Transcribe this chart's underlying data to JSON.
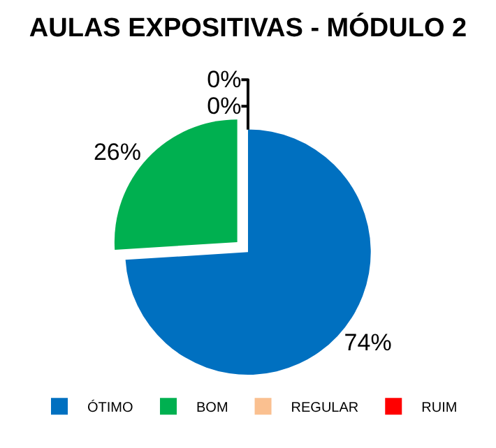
{
  "chart_data": {
    "type": "pie",
    "title": "AULAS EXPOSITIVAS - MÓDULO 2",
    "categories": [
      "ÓTIMO",
      "BOM",
      "REGULAR",
      "RUIM"
    ],
    "values": [
      74,
      26,
      0,
      0
    ],
    "colors": [
      "#0070c0",
      "#00b050",
      "#fac090",
      "#ff0000"
    ],
    "value_labels": [
      "74%",
      "26%",
      "0%",
      "0%"
    ],
    "legend": "bottom"
  }
}
